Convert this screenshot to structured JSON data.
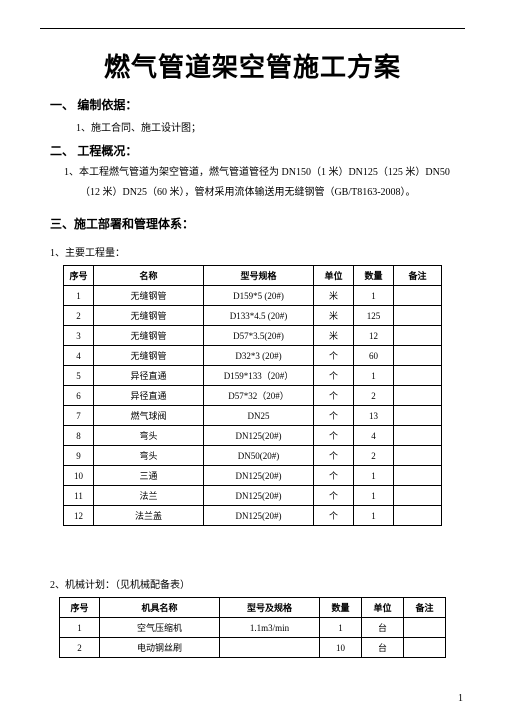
{
  "title": "燃气管道架空管施工方案",
  "section1": {
    "heading": "一、 编制依据：",
    "item1": "1、施工合同、施工设计图；"
  },
  "section2": {
    "heading": "二、 工程概况：",
    "para1": "1、本工程燃气管道为架空管道，燃气管道管径为 DN150（1 米）DN125（125 米）DN50",
    "para2": "（12 米）DN25（60 米），管材采用流体输送用无缝钢管（GB/T8163-2008）。"
  },
  "section3": {
    "heading": "三、施工部署和管理体系："
  },
  "table1": {
    "caption": "1、主要工程量：",
    "headers": [
      "序号",
      "名称",
      "型号规格",
      "单位",
      "数量",
      "备注"
    ],
    "rows": [
      [
        "1",
        "无缝钢管",
        "D159*5 (20#)",
        "米",
        "1",
        ""
      ],
      [
        "2",
        "无缝钢管",
        "D133*4.5 (20#)",
        "米",
        "125",
        ""
      ],
      [
        "3",
        "无缝钢管",
        "D57*3.5(20#)",
        "米",
        "12",
        ""
      ],
      [
        "4",
        "无缝钢管",
        "D32*3 (20#)",
        "个",
        "60",
        ""
      ],
      [
        "5",
        "异径直通",
        "D159*133（20#）",
        "个",
        "1",
        ""
      ],
      [
        "6",
        "异径直通",
        "D57*32（20#）",
        "个",
        "2",
        ""
      ],
      [
        "7",
        "燃气球阀",
        "DN25",
        "个",
        "13",
        ""
      ],
      [
        "8",
        "弯头",
        "DN125(20#)",
        "个",
        "4",
        ""
      ],
      [
        "9",
        "弯头",
        "DN50(20#)",
        "个",
        "2",
        ""
      ],
      [
        "10",
        "三通",
        "DN125(20#)",
        "个",
        "1",
        ""
      ],
      [
        "11",
        "法兰",
        "DN125(20#)",
        "个",
        "1",
        ""
      ],
      [
        "12",
        "法兰盖",
        "DN125(20#)",
        "个",
        "1",
        ""
      ]
    ]
  },
  "table2": {
    "caption": "2、机械计划：（见机械配备表）",
    "headers": [
      "序号",
      "机具名称",
      "型号及规格",
      "数量",
      "单位",
      "备注"
    ],
    "rows": [
      [
        "1",
        "空气压缩机",
        "1.1m3/min",
        "1",
        "台",
        ""
      ],
      [
        "2",
        "电动钢丝刷",
        "",
        "10",
        "台",
        ""
      ]
    ]
  },
  "pageNum": "1"
}
